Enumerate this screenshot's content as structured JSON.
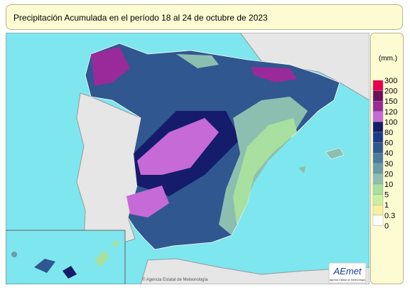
{
  "header": {
    "title": "Precipitación Acumulada en el período 18 al 24 de octubre de 2023"
  },
  "legend": {
    "unit": "(mm.)",
    "levels": [
      "300",
      "200",
      "150",
      "120",
      "100",
      "80",
      "60",
      "40",
      "30",
      "20",
      "10",
      "5",
      "1",
      "0.3",
      "0"
    ],
    "colors": [
      "#e8004f",
      "#6e0f5e",
      "#9a2a9a",
      "#c56ad6",
      "#141c6b",
      "#1c3c8a",
      "#30578f",
      "#4a7a9c",
      "#6b9aa8",
      "#8cbfb0",
      "#a8e0a0",
      "#c8f0a0",
      "#f8f0a0",
      "#ffffff"
    ]
  },
  "map": {
    "credit": "© Agencia Estatal de Meteorología",
    "logo": "AEmet",
    "logo_sub": "Agencia Estatal de Meteorología"
  }
}
